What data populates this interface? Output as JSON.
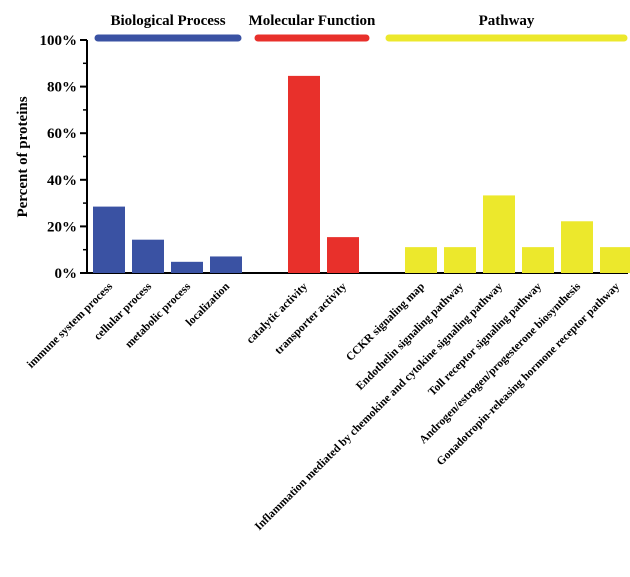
{
  "chart_data": {
    "type": "bar",
    "ylabel": "Percent of proteins",
    "xlabel": "",
    "ylim": [
      0,
      100
    ],
    "yticks": [
      "0%",
      "20%",
      "40%",
      "60%",
      "80%",
      "100%"
    ],
    "grid": false,
    "groups": [
      {
        "name": "Biological Process",
        "color": "#3a52a3",
        "categories": [
          "immune system process",
          "cellular process",
          "metabolic process",
          "localization"
        ],
        "values": [
          28.5,
          14.3,
          4.8,
          7.1
        ]
      },
      {
        "name": "Molecular Function",
        "color": "#e8302b",
        "categories": [
          "catalytic activity",
          "transporter activity"
        ],
        "values": [
          84.6,
          15.4
        ]
      },
      {
        "name": "Pathway",
        "color": "#ece82c",
        "categories": [
          "CCKR signaling map",
          "Endothelin signaling pathway",
          "Inflammation mediated by chemokine and cytokine signaling pathway",
          "Toll receptor signaling pathway",
          "Androgen/estrogen/progesterone biosynthesis",
          "Gonadotropin-releasing hormone receptor pathway"
        ],
        "values": [
          11.1,
          11.1,
          33.3,
          11.1,
          22.2,
          11.1
        ]
      }
    ]
  }
}
